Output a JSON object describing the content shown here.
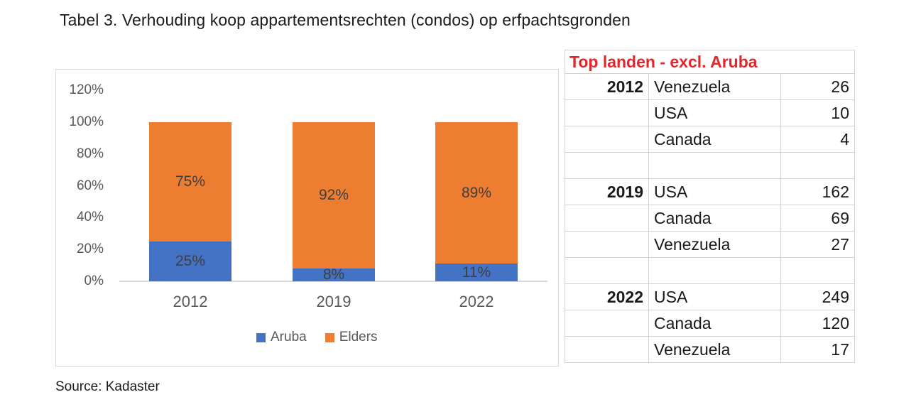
{
  "title": "Tabel 3. Verhouding koop appartementsrechten (condos) op erfpachtsgronden",
  "source": "Source: Kadaster",
  "chart_data": {
    "type": "bar",
    "stacked": true,
    "title": "Tabel 3. Verhouding koop appartementsrechten (condos) op erfpachtsgronden",
    "categories": [
      "2012",
      "2019",
      "2022"
    ],
    "series": [
      {
        "name": "Aruba",
        "color": "#4472C4",
        "values": [
          25,
          8,
          11
        ],
        "labels": [
          "25%",
          "8%",
          "11%"
        ]
      },
      {
        "name": "Elders",
        "color": "#ED7D31",
        "values": [
          75,
          92,
          89
        ],
        "labels": [
          "75%",
          "92%",
          "89%"
        ]
      }
    ],
    "xlabel": "",
    "ylabel": "",
    "ylim": [
      0,
      120
    ],
    "y_ticks": [
      "120%",
      "100%",
      "80%",
      "60%",
      "40%",
      "20%",
      "0%"
    ],
    "y_tick_values": [
      120,
      100,
      80,
      60,
      40,
      20,
      0
    ],
    "grid": false,
    "legend_position": "bottom"
  },
  "table": {
    "header": "Top landen - excl. Aruba",
    "header_color": "#e2262c",
    "rows": [
      {
        "year": "2012",
        "country": "Venezuela",
        "value": "26"
      },
      {
        "year": "",
        "country": "USA",
        "value": "10"
      },
      {
        "year": "",
        "country": "Canada",
        "value": "4"
      },
      {
        "year": "",
        "country": "",
        "value": ""
      },
      {
        "year": "2019",
        "country": "USA",
        "value": "162"
      },
      {
        "year": "",
        "country": "Canada",
        "value": "69"
      },
      {
        "year": "",
        "country": "Venezuela",
        "value": "27"
      },
      {
        "year": "",
        "country": "",
        "value": ""
      },
      {
        "year": "2022",
        "country": "USA",
        "value": "249"
      },
      {
        "year": "",
        "country": "Canada",
        "value": "120"
      },
      {
        "year": "",
        "country": "Venezuela",
        "value": "17"
      }
    ]
  }
}
